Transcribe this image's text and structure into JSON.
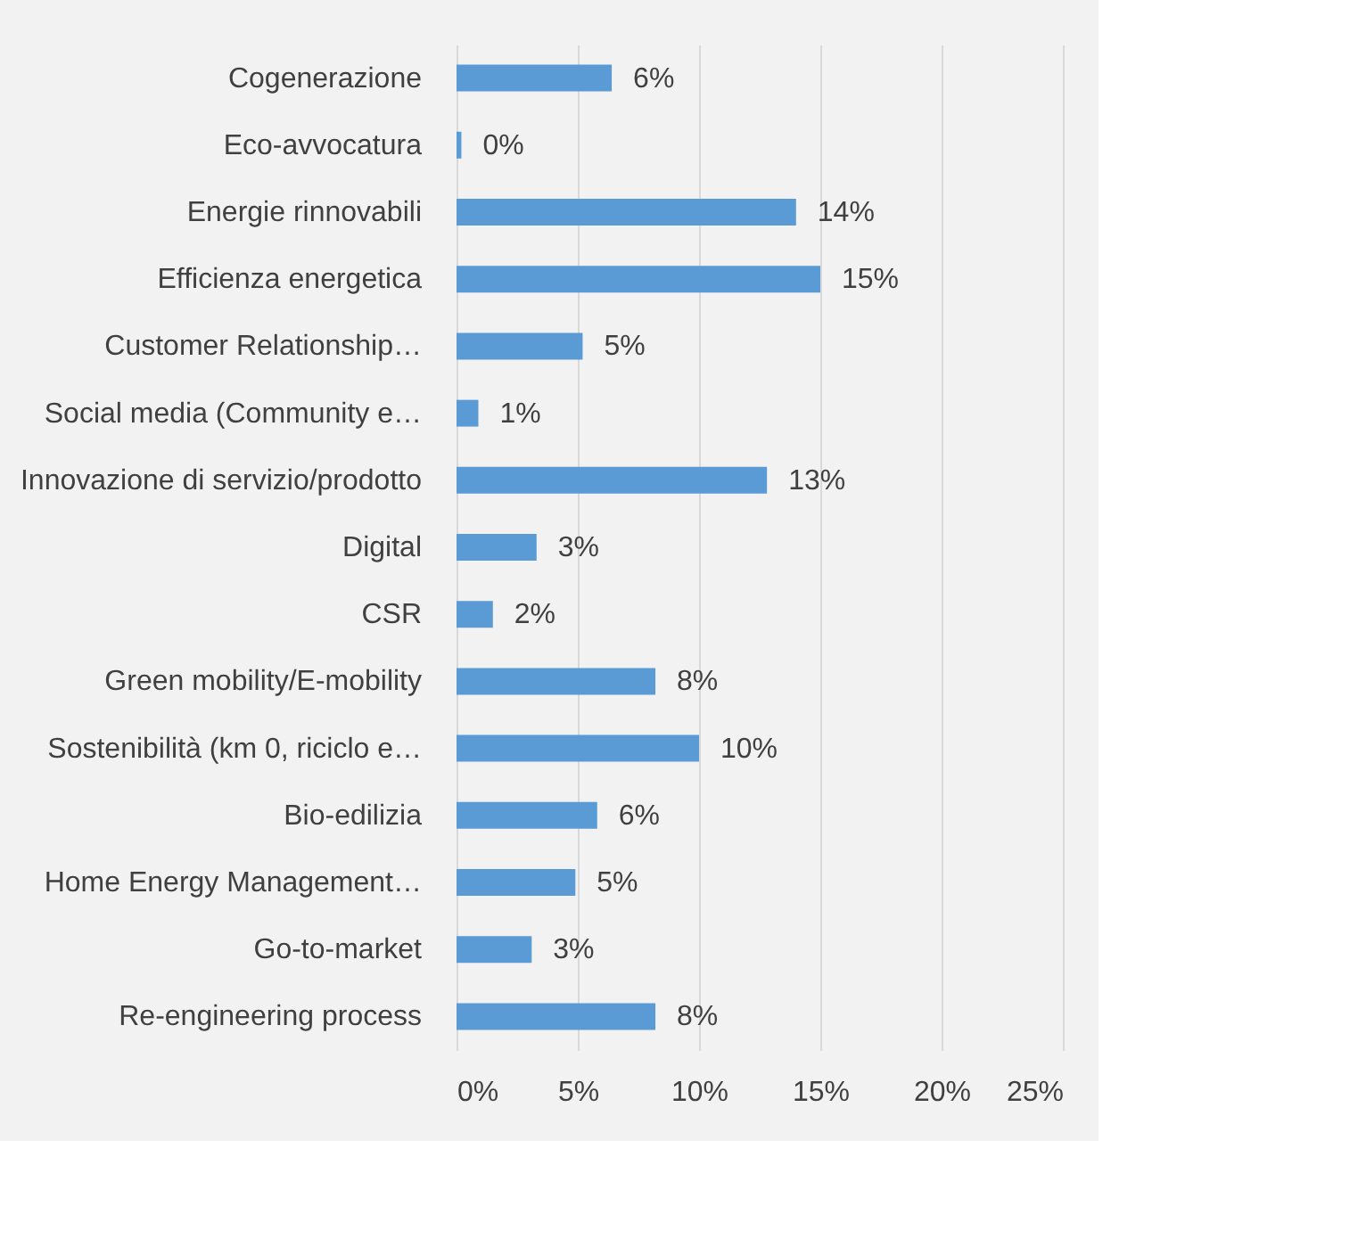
{
  "chart_data": {
    "type": "bar",
    "orientation": "horizontal",
    "categories": [
      "Cogenerazione",
      "Eco-avvocatura",
      "Energie rinnovabili",
      "Efficienza energetica",
      "Customer Relationship…",
      "Social media (Community e…",
      "Innovazione di servizio/prodotto",
      "Digital",
      "CSR",
      "Green mobility/E-mobility",
      "Sostenibilità (km 0, riciclo e…",
      "Bio-edilizia",
      "Home Energy Management…",
      "Go-to-market",
      "Re-engineering process"
    ],
    "values": [
      6.4,
      0.2,
      14.0,
      15.0,
      5.2,
      0.9,
      12.8,
      3.3,
      1.5,
      8.2,
      10.0,
      5.8,
      4.9,
      3.1,
      8.2
    ],
    "value_labels": [
      "6%",
      "0%",
      "14%",
      "15%",
      "5%",
      "1%",
      "13%",
      "3%",
      "2%",
      "8%",
      "10%",
      "6%",
      "5%",
      "3%",
      "8%"
    ],
    "color": "#5b9bd5",
    "xlim": [
      0,
      25
    ],
    "xticks": [
      {
        "value": 0,
        "label": "0%"
      },
      {
        "value": 5,
        "label": "5%"
      },
      {
        "value": 10,
        "label": "10%"
      },
      {
        "value": 15,
        "label": "15%"
      },
      {
        "value": 20,
        "label": "20%"
      },
      {
        "value": 25,
        "label": "25%"
      }
    ],
    "grid": "x"
  }
}
